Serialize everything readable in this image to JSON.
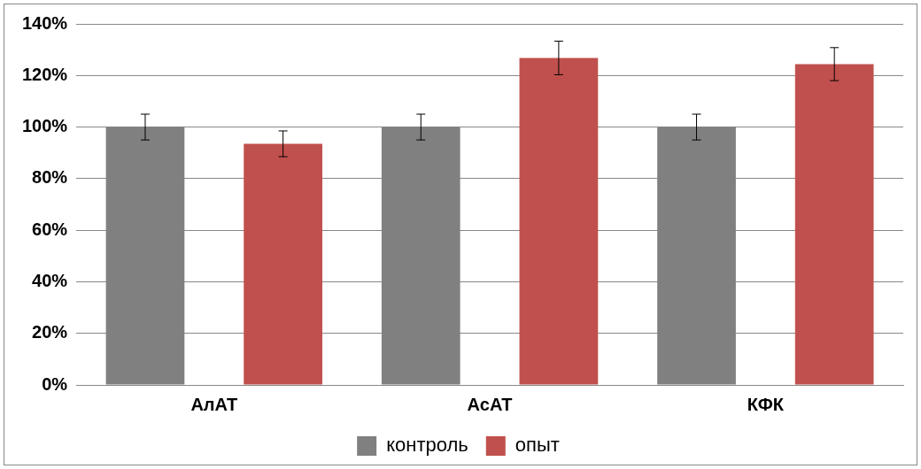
{
  "chart_data": {
    "type": "bar",
    "categories": [
      "АлАТ",
      "АсАТ",
      "КФК"
    ],
    "series": [
      {
        "name": "контроль",
        "color": "#808080",
        "values": [
          100,
          100,
          100
        ],
        "errors": [
          5,
          5,
          5
        ]
      },
      {
        "name": "опыт",
        "color": "#c0504d",
        "values": [
          93.5,
          126.8,
          124.4
        ],
        "errors": [
          5,
          6.5,
          6.4
        ]
      }
    ],
    "ylim": [
      0,
      140
    ],
    "yticks": [
      {
        "value": 0,
        "label": "0%"
      },
      {
        "value": 20,
        "label": "20%"
      },
      {
        "value": 40,
        "label": "40%"
      },
      {
        "value": 60,
        "label": "60%"
      },
      {
        "value": 80,
        "label": "80%"
      },
      {
        "value": 100,
        "label": "100%"
      },
      {
        "value": 120,
        "label": "120%"
      },
      {
        "value": 140,
        "label": "140%"
      }
    ],
    "grid": "y",
    "legend": "bottom"
  }
}
